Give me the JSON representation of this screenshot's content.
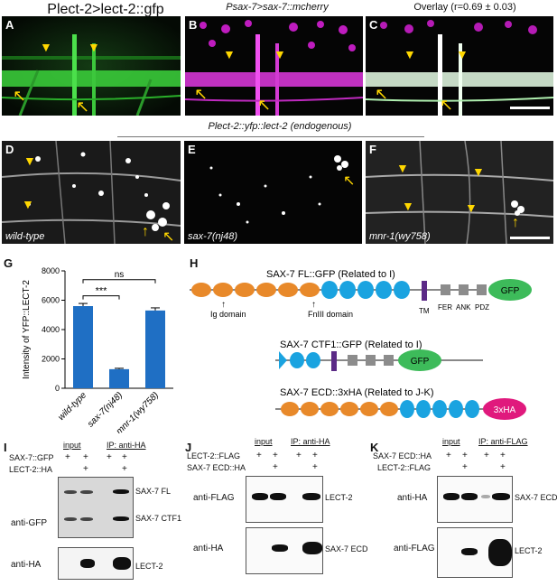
{
  "panel_a": {
    "letter": "A",
    "caption": "Plect-2>lect-2::gfp"
  },
  "panel_b": {
    "letter": "B",
    "caption": "Psax-7>sax-7::mcherry"
  },
  "panel_c": {
    "letter": "C",
    "caption": "Overlay (r=0.69 ± 0.03)"
  },
  "row2_title": "Plect-2::yfp::lect-2 (endogenous)",
  "panel_d": {
    "letter": "D",
    "caption": "wild-type"
  },
  "panel_e": {
    "letter": "E",
    "caption": "sax-7(nj48)"
  },
  "panel_f": {
    "letter": "F",
    "caption": "mnr-1(wy758)"
  },
  "panel_g": {
    "letter": "G"
  },
  "panel_h": {
    "letter": "H"
  },
  "panel_i": {
    "letter": "I"
  },
  "panel_j": {
    "letter": "J"
  },
  "panel_k": {
    "letter": "K"
  },
  "chart_data": {
    "type": "bar",
    "categories": [
      "wild-type",
      "sax-7(nj48)",
      "mnr-1(wy758)"
    ],
    "values": [
      5600,
      1300,
      5300
    ],
    "errors": [
      180,
      60,
      180
    ],
    "ylabel": "Intensity of YFP::LECT-2",
    "yticks": [
      "0",
      "2000",
      "4000",
      "6000",
      "8000"
    ],
    "ylim": [
      0,
      8000
    ],
    "bar_color": "#1f6fc4",
    "significance": [
      {
        "pair": [
          "wild-type",
          "sax-7(nj48)"
        ],
        "label": "***"
      },
      {
        "pair": [
          "wild-type",
          "mnr-1(wy758)"
        ],
        "label": "ns"
      }
    ]
  },
  "diagram": {
    "fl_title": "SAX-7 FL::GFP (Related to I)",
    "ctf1_title": "SAX-7 CTF1::GFP (Related to I)",
    "ecd_title": "SAX-7 ECD::3xHA (Related to J-K)",
    "ig_label": "Ig domain",
    "fn_label": "FnIII domain",
    "tm_label": "TM",
    "fer_label": "FER",
    "ank_label": "ANK",
    "pdz_label": "PDZ",
    "gfp_tag": "GFP",
    "ha_tag": "3xHA",
    "colors": {
      "ig": "#e8892a",
      "fn": "#1aa3e0",
      "tm": "#5b2a86",
      "cyto": "#8c8c8c",
      "gfp": "#3dbb5a",
      "ha": "#e0197d"
    }
  },
  "blot_i": {
    "rows": [
      {
        "label": "SAX-7::GFP",
        "marks": [
          "+",
          "+",
          "+",
          "+"
        ]
      },
      {
        "label": "LECT-2::HA",
        "marks": [
          "",
          "+",
          "",
          "+"
        ]
      }
    ],
    "input_label": "input",
    "ip_label": "IP: anti-HA",
    "gfp_antibody": "anti-GFP",
    "ha_antibody": "anti-HA",
    "band_fl": "SAX-7 FL",
    "band_ctf1": "SAX-7 CTF1",
    "band_lect2": "LECT-2"
  },
  "blot_j": {
    "rows": [
      {
        "label": "LECT-2::FLAG",
        "marks": [
          "+",
          "+",
          "+",
          "+"
        ]
      },
      {
        "label": "SAX-7 ECD::HA",
        "marks": [
          "",
          "+",
          "",
          "+"
        ]
      }
    ],
    "input_label": "input",
    "ip_label": "IP: anti-HA",
    "flag_antibody": "anti-FLAG",
    "ha_antibody": "anti-HA",
    "band_lect2": "LECT-2",
    "band_ecd": "SAX-7 ECD"
  },
  "blot_k": {
    "rows": [
      {
        "label": "SAX-7 ECD::HA",
        "marks": [
          "+",
          "+",
          "+",
          "+"
        ]
      },
      {
        "label": "LECT-2::FLAG",
        "marks": [
          "",
          "+",
          "",
          "+"
        ]
      }
    ],
    "input_label": "input",
    "ip_label": "IP: anti-FLAG",
    "ha_antibody": "anti-HA",
    "flag_antibody": "anti-FLAG",
    "band_ecd": "SAX-7 ECD",
    "band_lect2": "LECT-2"
  }
}
